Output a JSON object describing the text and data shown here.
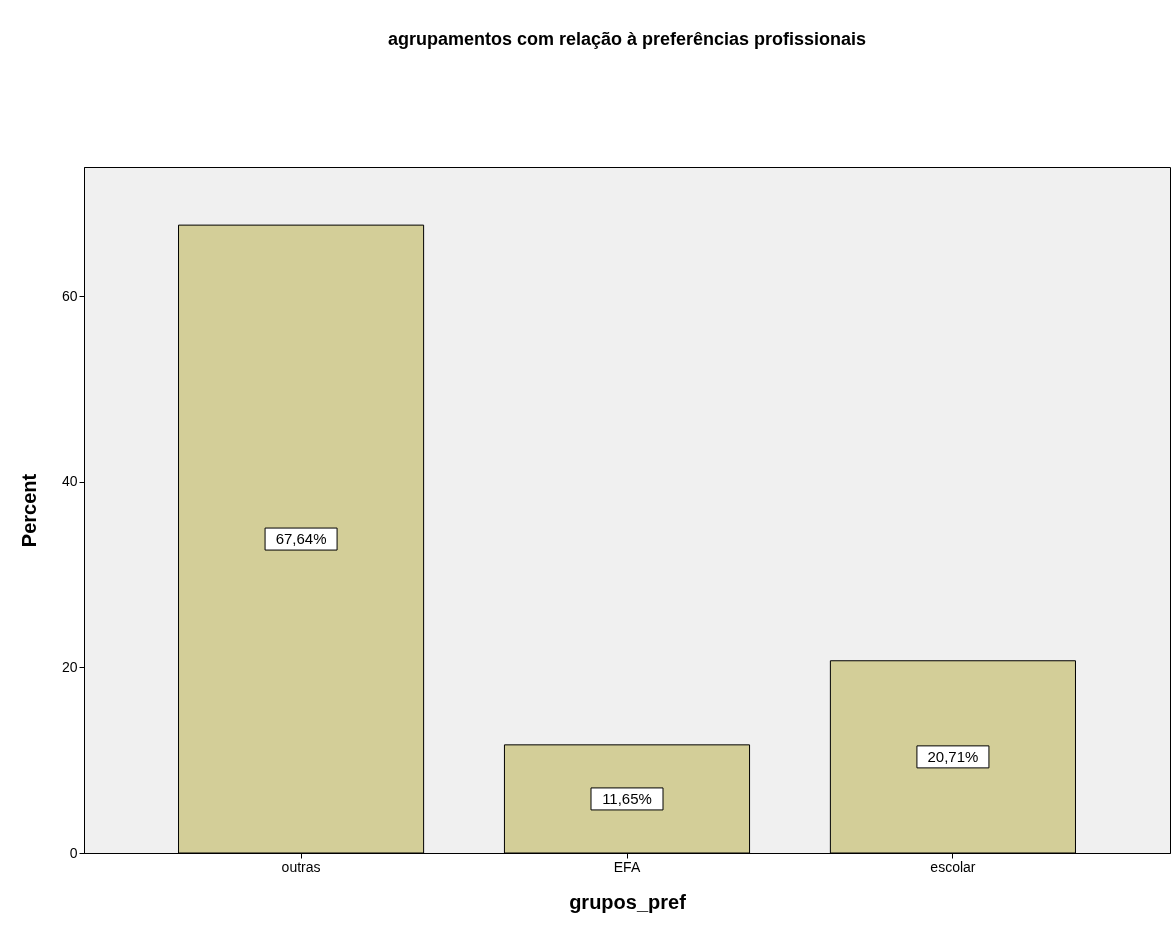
{
  "chart_data": {
    "type": "bar",
    "title": "agrupamentos com relação à preferências profissionais",
    "xlabel": "grupos_pref",
    "ylabel": "Percent",
    "categories": [
      "outras",
      "EFA",
      "escolar"
    ],
    "values": [
      67.64,
      11.65,
      20.71
    ],
    "value_labels": [
      "67,64%",
      "11,65%",
      "20,71%"
    ],
    "color": "#d3ce98",
    "ylim": [
      0,
      73.9
    ],
    "yticks": [
      0,
      20,
      40,
      60
    ],
    "grid": false
  }
}
